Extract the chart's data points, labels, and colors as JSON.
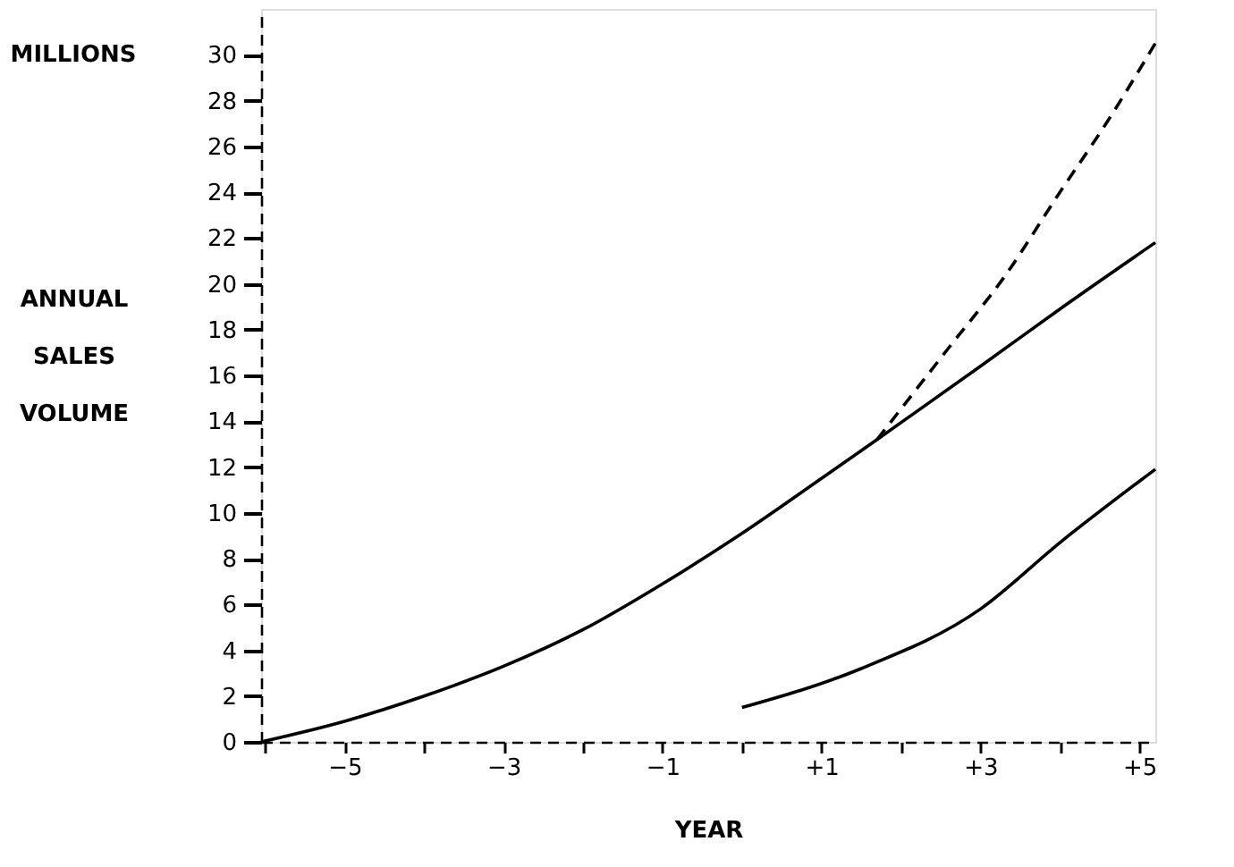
{
  "chart_data": {
    "type": "line",
    "xlabel": "YEAR",
    "ylabel": "ANNUAL SALES VOLUME",
    "annotations": [
      "MILLIONS"
    ],
    "xlim": [
      -6.05,
      5.2
    ],
    "ylim": [
      0,
      32
    ],
    "xticks": [
      {
        "value": -6,
        "label": null
      },
      {
        "value": -5,
        "label": "−5"
      },
      {
        "value": -4,
        "label": null
      },
      {
        "value": -3,
        "label": "−3"
      },
      {
        "value": -2,
        "label": null
      },
      {
        "value": -1,
        "label": "−1"
      },
      {
        "value": 0,
        "label": null
      },
      {
        "value": 1,
        "label": "+1"
      },
      {
        "value": 2,
        "label": null
      },
      {
        "value": 3,
        "label": "+3"
      },
      {
        "value": 4,
        "label": null
      },
      {
        "value": 5,
        "label": "+5"
      }
    ],
    "yticks": [
      0,
      2,
      4,
      6,
      8,
      10,
      12,
      14,
      16,
      18,
      20,
      22,
      24,
      26,
      28,
      30
    ],
    "grid": false,
    "marker": "none",
    "series": [
      {
        "color": "#000000",
        "line_style": "solid",
        "x": [
          -6.05,
          -5,
          -4,
          -3,
          -2,
          -1,
          0,
          1,
          1.7,
          3,
          4,
          5.2
        ],
        "values": [
          0,
          0.9,
          2.0,
          3.3,
          4.9,
          6.9,
          9.1,
          11.5,
          13.2,
          16.4,
          18.9,
          21.8
        ]
      },
      {
        "color": "#000000",
        "line_style": "dashed",
        "x": [
          1.7,
          2.6,
          3.3,
          4.0,
          4.6,
          5.2
        ],
        "values": [
          13.2,
          17.2,
          20.3,
          24.0,
          27.1,
          30.5
        ]
      },
      {
        "color": "#000000",
        "line_style": "solid",
        "x": [
          0,
          1.5,
          3.0,
          4.0,
          5.2
        ],
        "values": [
          1.5,
          3.2,
          5.8,
          8.7,
          11.9
        ]
      }
    ]
  }
}
